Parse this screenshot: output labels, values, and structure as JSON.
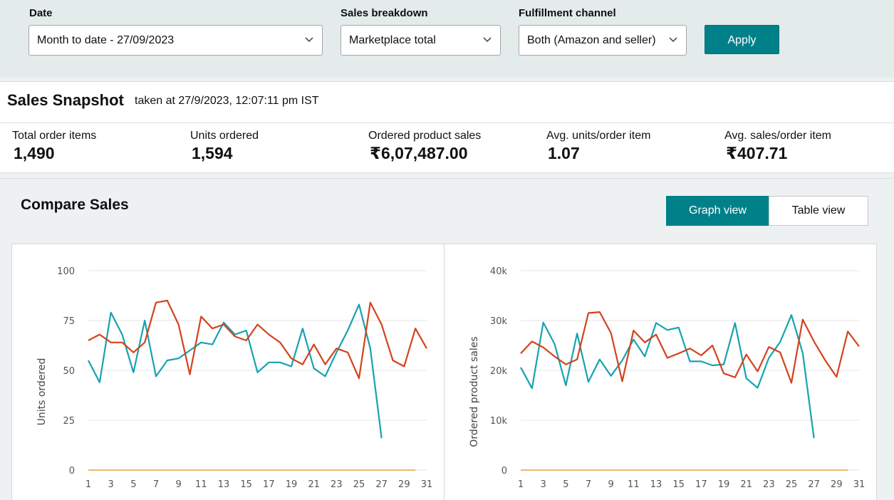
{
  "filters": {
    "date": {
      "label": "Date",
      "value": "Month to date - 27/09/2023"
    },
    "breakdown": {
      "label": "Sales breakdown",
      "value": "Marketplace total"
    },
    "channel": {
      "label": "Fulfillment channel",
      "value": "Both (Amazon and seller)"
    },
    "apply_label": "Apply"
  },
  "snapshot": {
    "title": "Sales Snapshot",
    "taken": "taken at 27/9/2023, 12:07:11 pm IST",
    "metrics": [
      {
        "label": "Total order items",
        "value": "1,490"
      },
      {
        "label": "Units ordered",
        "value": "1,594"
      },
      {
        "label": "Ordered product sales",
        "value": "₹6,07,487.00"
      },
      {
        "label": "Avg. units/order item",
        "value": "1.07"
      },
      {
        "label": "Avg. sales/order item",
        "value": "₹407.71"
      }
    ]
  },
  "compare": {
    "title": "Compare Sales",
    "graph_view": "Graph view",
    "table_view": "Table view"
  },
  "colors": {
    "teal": "#17a2b0",
    "orange": "#d4421c",
    "flat": "#e6a23c",
    "accent": "#00818a"
  },
  "chart_data": [
    {
      "type": "line",
      "ylabel": "Units ordered",
      "ylim": [
        0,
        100
      ],
      "yticks": [
        "0",
        "25",
        "50",
        "75",
        "100"
      ],
      "xticks": [
        "1",
        "3",
        "5",
        "7",
        "9",
        "11",
        "13",
        "15",
        "17",
        "19",
        "21",
        "23",
        "25",
        "27",
        "29",
        "31"
      ],
      "x": [
        1,
        2,
        3,
        4,
        5,
        6,
        7,
        8,
        9,
        10,
        11,
        12,
        13,
        14,
        15,
        16,
        17,
        18,
        19,
        20,
        21,
        22,
        23,
        24,
        25,
        26,
        27,
        28,
        29,
        30,
        31
      ],
      "series": [
        {
          "color": "teal",
          "values": [
            55,
            44,
            79,
            68,
            49,
            75,
            47,
            55,
            56,
            60,
            64,
            63,
            74,
            68,
            70,
            49,
            54,
            54,
            52,
            71,
            51,
            47,
            59,
            70,
            83,
            61,
            16,
            null,
            null,
            null,
            null
          ]
        },
        {
          "color": "orange",
          "values": [
            65,
            68,
            64,
            64,
            59,
            64,
            84,
            85,
            73,
            48,
            77,
            71,
            73,
            67,
            65,
            73,
            68,
            64,
            56,
            53,
            63,
            53,
            61,
            59,
            46,
            84,
            73,
            55,
            52,
            71,
            61
          ]
        },
        {
          "color": "flat",
          "values": [
            0,
            0,
            0,
            0,
            0,
            0,
            0,
            0,
            0,
            0,
            0,
            0,
            0,
            0,
            0,
            0,
            0,
            0,
            0,
            0,
            0,
            0,
            0,
            0,
            0,
            0,
            0,
            0,
            0,
            0,
            null
          ]
        }
      ]
    },
    {
      "type": "line",
      "ylabel": "Ordered product sales",
      "ylim": [
        0,
        40000
      ],
      "yticks": [
        "0",
        "10k",
        "20k",
        "30k",
        "40k"
      ],
      "xticks": [
        "1",
        "3",
        "5",
        "7",
        "9",
        "11",
        "13",
        "15",
        "17",
        "19",
        "21",
        "23",
        "25",
        "27",
        "29",
        "31"
      ],
      "x": [
        1,
        2,
        3,
        4,
        5,
        6,
        7,
        8,
        9,
        10,
        11,
        12,
        13,
        14,
        15,
        16,
        17,
        18,
        19,
        20,
        21,
        22,
        23,
        24,
        25,
        26,
        27,
        28,
        29,
        30,
        31
      ],
      "series": [
        {
          "color": "teal",
          "values": [
            20600,
            16400,
            29600,
            25300,
            17000,
            27400,
            17700,
            22200,
            18900,
            22000,
            26200,
            22800,
            29500,
            28100,
            28600,
            21800,
            21800,
            21000,
            21200,
            29500,
            18400,
            16500,
            22500,
            25700,
            31100,
            23500,
            6400,
            null,
            null,
            null,
            null
          ]
        },
        {
          "color": "orange",
          "values": [
            23400,
            25800,
            24600,
            22800,
            21200,
            22200,
            31500,
            31700,
            27500,
            17800,
            28000,
            25600,
            27200,
            22500,
            23400,
            24400,
            23000,
            25000,
            19400,
            18600,
            23200,
            19800,
            24700,
            23600,
            17500,
            30200,
            25800,
            22000,
            18700,
            27800,
            24800
          ]
        },
        {
          "color": "flat",
          "values": [
            0,
            0,
            0,
            0,
            0,
            0,
            0,
            0,
            0,
            0,
            0,
            0,
            0,
            0,
            0,
            0,
            0,
            0,
            0,
            0,
            0,
            0,
            0,
            0,
            0,
            0,
            0,
            0,
            0,
            0,
            null
          ]
        }
      ]
    }
  ]
}
